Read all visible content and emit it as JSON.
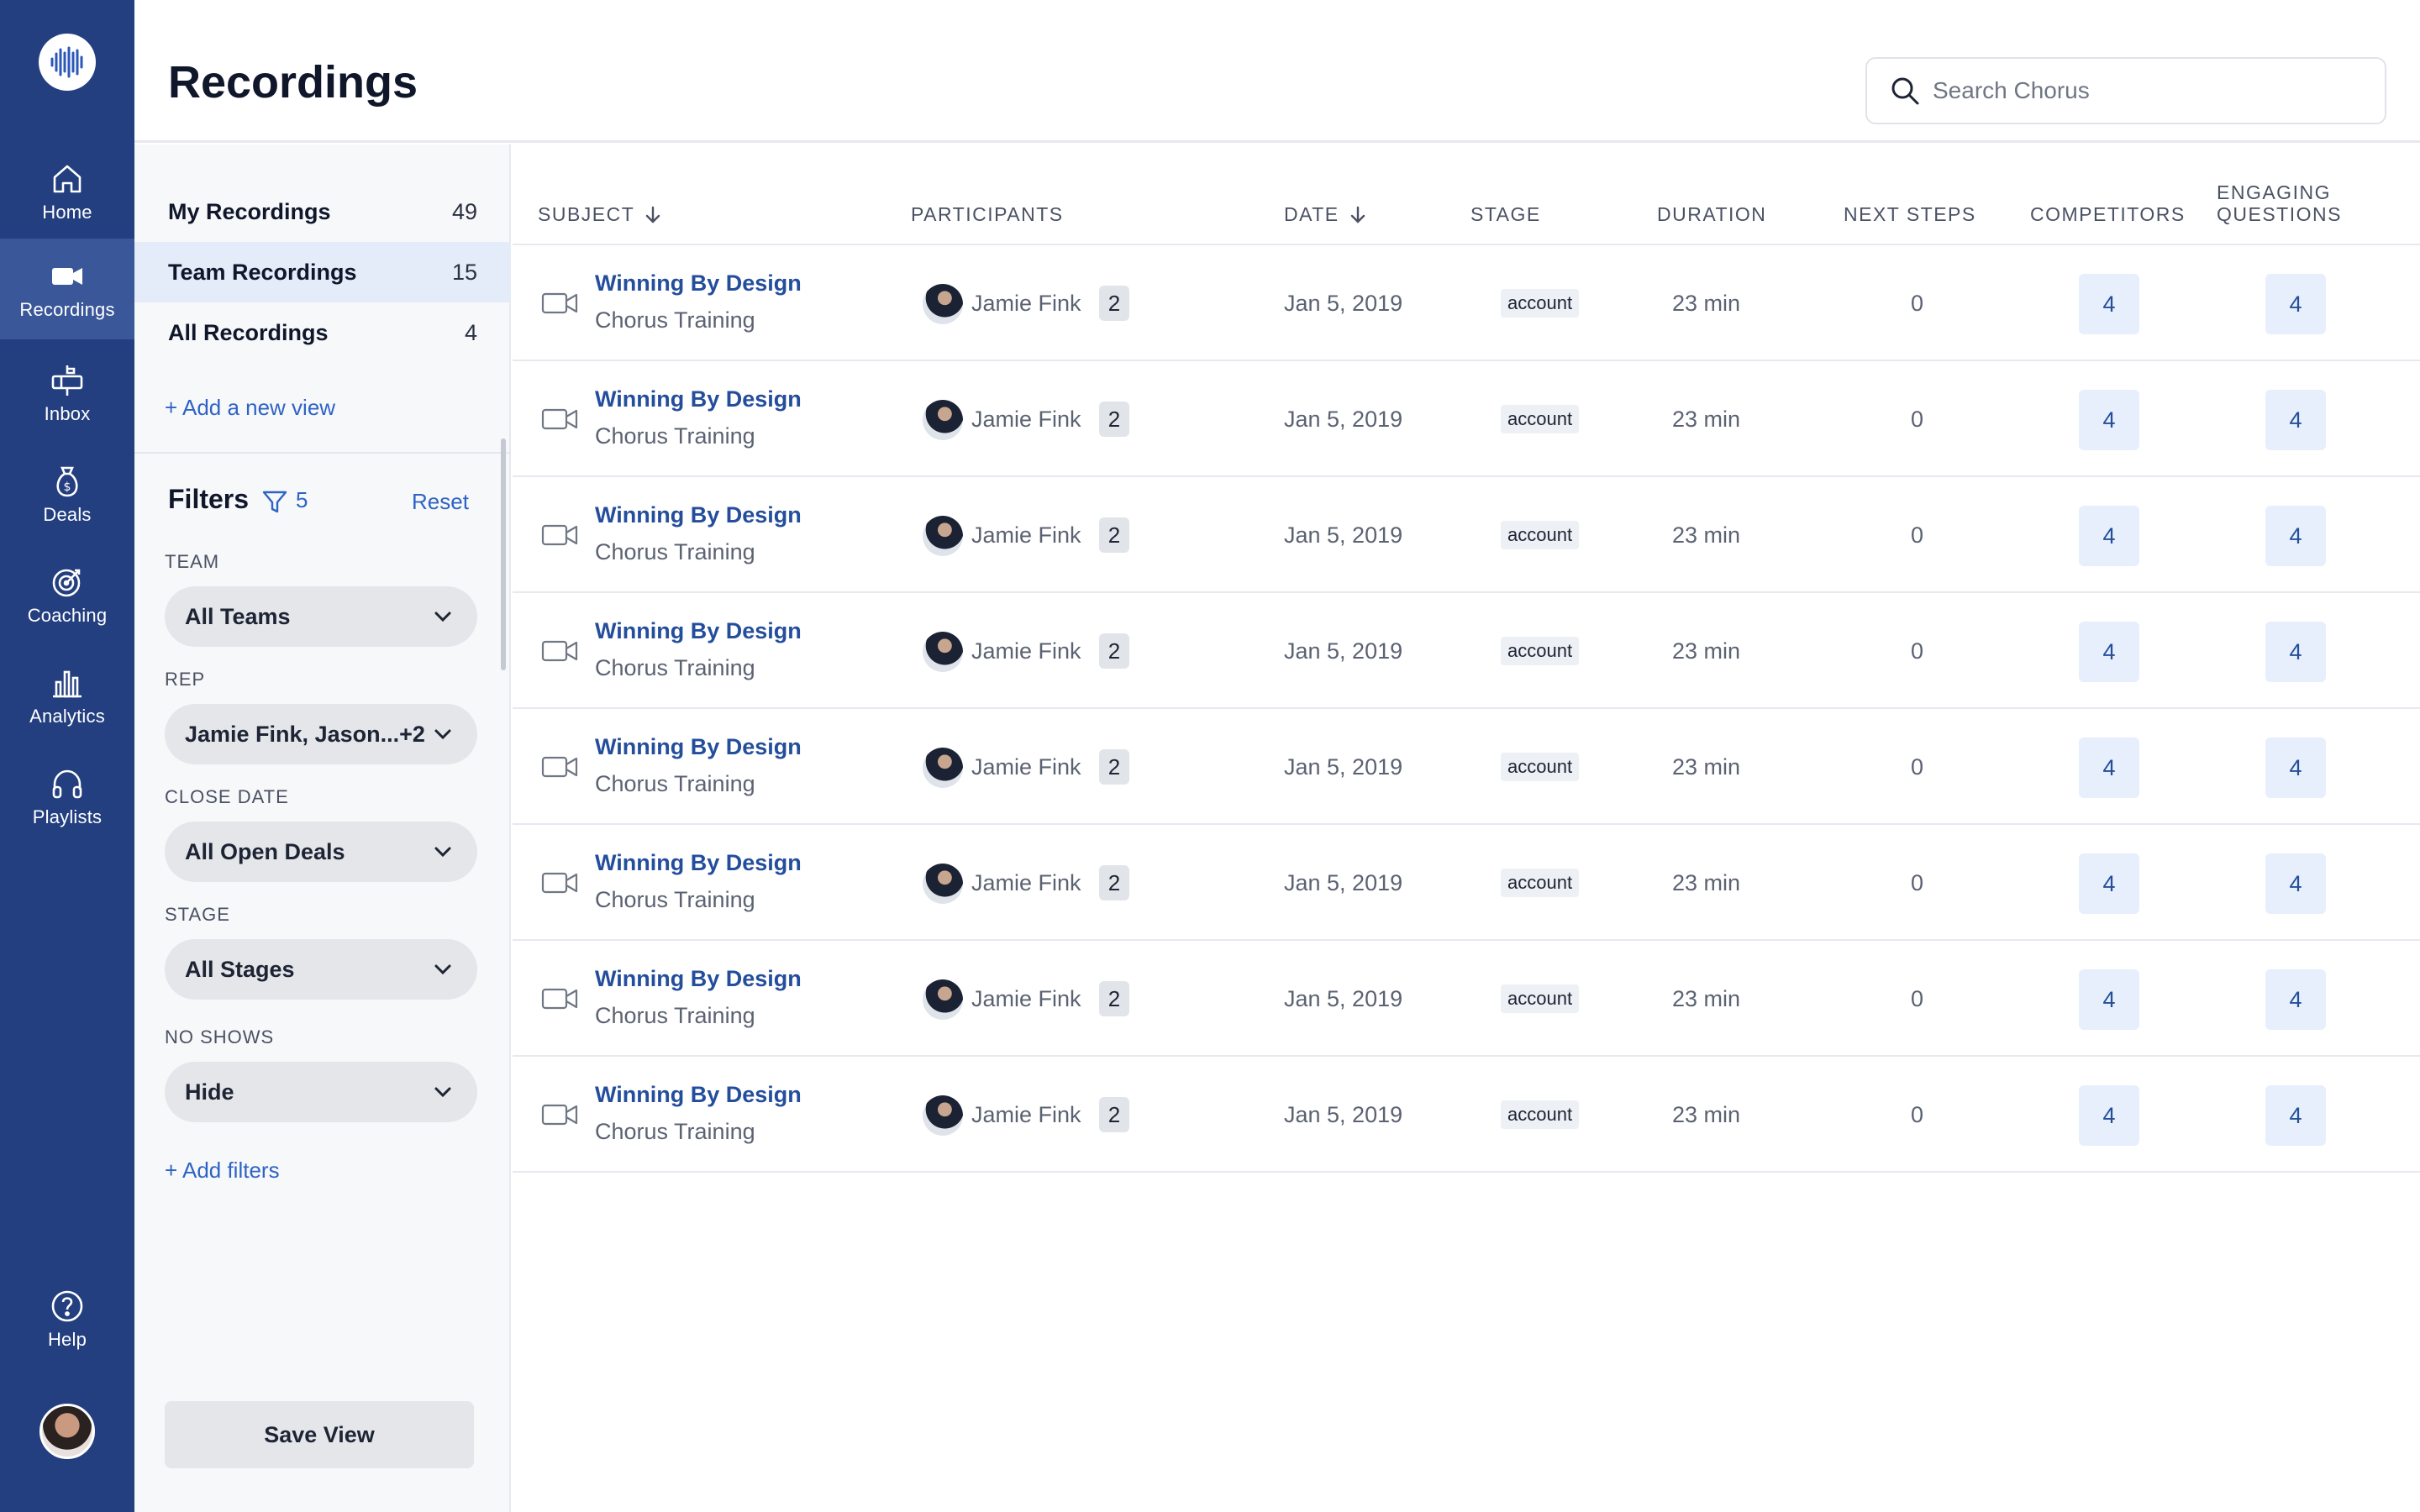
{
  "nav": {
    "items": [
      {
        "label": "Home",
        "icon": "home-icon"
      },
      {
        "label": "Recordings",
        "icon": "video-camera-icon",
        "active": true
      },
      {
        "label": "Inbox",
        "icon": "mailbox-icon"
      },
      {
        "label": "Deals",
        "icon": "money-bag-icon"
      },
      {
        "label": "Coaching",
        "icon": "target-icon"
      },
      {
        "label": "Analytics",
        "icon": "bar-chart-icon"
      },
      {
        "label": "Playlists",
        "icon": "headphones-icon"
      }
    ],
    "help": {
      "label": "Help",
      "icon": "help-circle-icon"
    }
  },
  "header": {
    "title": "Recordings",
    "search_placeholder": "Search Chorus"
  },
  "views": [
    {
      "label": "My Recordings",
      "count": "49"
    },
    {
      "label": "Team Recordings",
      "count": "15",
      "active": true
    },
    {
      "label": "All Recordings",
      "count": "4"
    }
  ],
  "add_view_label": "+ Add a new view",
  "filters": {
    "title": "Filters",
    "count": "5",
    "reset_label": "Reset",
    "items": [
      {
        "label": "TEAM",
        "value": "All Teams"
      },
      {
        "label": "REP",
        "value": "Jamie Fink, Jason...+2"
      },
      {
        "label": "CLOSE DATE",
        "value": "All Open Deals"
      },
      {
        "label": "STAGE",
        "value": "All Stages"
      },
      {
        "label": "NO SHOWS",
        "value": "Hide"
      }
    ],
    "add_label": "+ Add filters"
  },
  "save_view_label": "Save View",
  "table": {
    "columns": {
      "subject": "SUBJECT",
      "participants": "PARTICIPANTS",
      "date": "DATE",
      "stage": "STAGE",
      "duration": "DURATION",
      "next_steps": "NEXT STEPS",
      "competitors": "COMPETITORS",
      "engaging_line1": "ENGAGING",
      "engaging_line2": "QUESTIONS"
    },
    "rows": [
      {
        "title": "Winning By Design",
        "subtitle": "Chorus Training",
        "participant": "Jamie Fink",
        "extra": "2",
        "date": "Jan 5, 2019",
        "stage": "account",
        "duration": "23 min",
        "next_steps": "0",
        "competitors": "4",
        "engaging": "4"
      },
      {
        "title": "Winning By Design",
        "subtitle": "Chorus Training",
        "participant": "Jamie Fink",
        "extra": "2",
        "date": "Jan 5, 2019",
        "stage": "account",
        "duration": "23 min",
        "next_steps": "0",
        "competitors": "4",
        "engaging": "4"
      },
      {
        "title": "Winning By Design",
        "subtitle": "Chorus Training",
        "participant": "Jamie Fink",
        "extra": "2",
        "date": "Jan 5, 2019",
        "stage": "account",
        "duration": "23 min",
        "next_steps": "0",
        "competitors": "4",
        "engaging": "4"
      },
      {
        "title": "Winning By Design",
        "subtitle": "Chorus Training",
        "participant": "Jamie Fink",
        "extra": "2",
        "date": "Jan 5, 2019",
        "stage": "account",
        "duration": "23 min",
        "next_steps": "0",
        "competitors": "4",
        "engaging": "4"
      },
      {
        "title": "Winning By Design",
        "subtitle": "Chorus Training",
        "participant": "Jamie Fink",
        "extra": "2",
        "date": "Jan 5, 2019",
        "stage": "account",
        "duration": "23 min",
        "next_steps": "0",
        "competitors": "4",
        "engaging": "4"
      },
      {
        "title": "Winning By Design",
        "subtitle": "Chorus Training",
        "participant": "Jamie Fink",
        "extra": "2",
        "date": "Jan 5, 2019",
        "stage": "account",
        "duration": "23 min",
        "next_steps": "0",
        "competitors": "4",
        "engaging": "4"
      },
      {
        "title": "Winning By Design",
        "subtitle": "Chorus Training",
        "participant": "Jamie Fink",
        "extra": "2",
        "date": "Jan 5, 2019",
        "stage": "account",
        "duration": "23 min",
        "next_steps": "0",
        "competitors": "4",
        "engaging": "4"
      },
      {
        "title": "Winning By Design",
        "subtitle": "Chorus Training",
        "participant": "Jamie Fink",
        "extra": "2",
        "date": "Jan 5, 2019",
        "stage": "account",
        "duration": "23 min",
        "next_steps": "0",
        "competitors": "4",
        "engaging": "4"
      }
    ]
  },
  "colors": {
    "nav_bg": "#233f80",
    "nav_active": "#3a579a",
    "link": "#2e63c5",
    "title_link": "#244e9c",
    "metric_bg": "#e6effb"
  }
}
